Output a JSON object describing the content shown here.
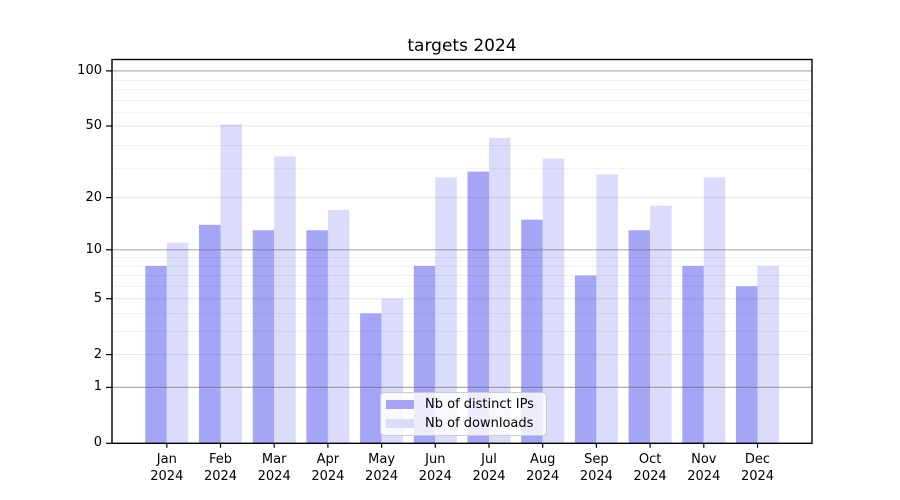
{
  "title": "targets 2024",
  "colors": {
    "bar_ips": "#a5a5f8",
    "bar_downloads": "#dbdbfb",
    "grid_minor": "rgba(0,0,0,0.055)",
    "grid_medium": "rgba(0,0,0,0.10)",
    "grid_dark": "rgba(105,105,105,0.55)",
    "spine": "#000000",
    "tick": "#000000",
    "legend_border": "#cccccc"
  },
  "chart_data": {
    "type": "bar",
    "title": "targets 2024",
    "categories": [
      "Jan",
      "Feb",
      "Mar",
      "Apr",
      "May",
      "Jun",
      "Jul",
      "Aug",
      "Sep",
      "Oct",
      "Nov",
      "Dec"
    ],
    "year": "2024",
    "series": [
      {
        "name": "Nb of distinct IPs",
        "values": [
          8,
          14,
          13,
          13,
          4,
          8,
          28,
          15,
          7,
          13,
          8,
          6
        ]
      },
      {
        "name": "Nb of downloads",
        "values": [
          11,
          51,
          34,
          17,
          5,
          26,
          43,
          33,
          27,
          18,
          26,
          8
        ]
      }
    ],
    "yscale": "log1p",
    "ylim": [
      0,
      115.3
    ],
    "yticks": [
      {
        "value": 0,
        "label": "0"
      },
      {
        "value": 1,
        "label": "1"
      },
      {
        "value": 2,
        "label": "2"
      },
      {
        "value": 5,
        "label": "5"
      },
      {
        "value": 10,
        "label": "10"
      },
      {
        "value": 20,
        "label": "20"
      },
      {
        "value": 50,
        "label": "50"
      },
      {
        "value": 100,
        "label": "100"
      }
    ],
    "grid_minor_values": [
      3,
      4,
      6,
      7,
      8,
      9,
      29,
      39,
      59,
      69,
      79,
      89
    ],
    "grid_medium_values": [
      2,
      5,
      20,
      50
    ],
    "grid_dark_values": [
      1,
      10,
      100
    ],
    "grid_on": true,
    "legend_position": "lower center"
  },
  "legend": {
    "items": [
      {
        "label": "Nb of distinct IPs",
        "color": "#a5a5f8"
      },
      {
        "label": "Nb of downloads",
        "color": "#dbdbfb"
      }
    ]
  }
}
